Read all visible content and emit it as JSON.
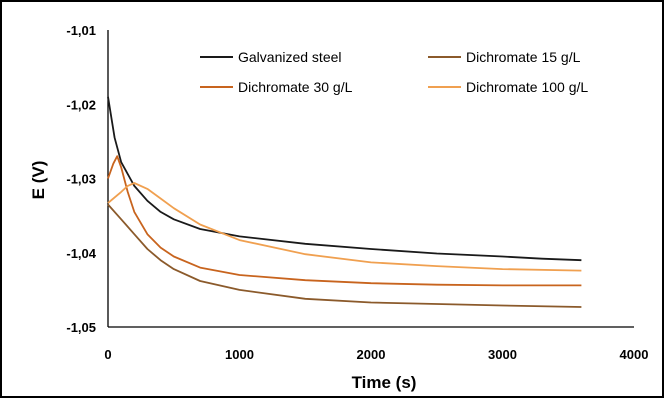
{
  "chart_data": {
    "type": "line",
    "title": "",
    "xlabel": "Time (s)",
    "ylabel": "E (V)",
    "xlim": [
      0,
      4000
    ],
    "ylim": [
      -1.05,
      -1.01
    ],
    "x_ticks": [
      0,
      1000,
      2000,
      3000,
      4000
    ],
    "x_tick_labels": [
      "0",
      "1000",
      "2000",
      "3000",
      "4000"
    ],
    "y_ticks": [
      -1.01,
      -1.02,
      -1.03,
      -1.04,
      -1.05
    ],
    "y_tick_labels": [
      "-1,01",
      "-1,02",
      "-1,03",
      "-1,04",
      "-1,05"
    ],
    "grid": false,
    "legend_position": "top-right",
    "series": [
      {
        "name": "Galvanized steel",
        "color": "#1a1a1a",
        "points": [
          [
            0,
            -1.019
          ],
          [
            50,
            -1.0245
          ],
          [
            100,
            -1.0278
          ],
          [
            200,
            -1.031
          ],
          [
            300,
            -1.033
          ],
          [
            400,
            -1.0345
          ],
          [
            500,
            -1.0355
          ],
          [
            700,
            -1.0368
          ],
          [
            1000,
            -1.0378
          ],
          [
            1500,
            -1.0388
          ],
          [
            2000,
            -1.0395
          ],
          [
            2500,
            -1.0401
          ],
          [
            3000,
            -1.0405
          ],
          [
            3300,
            -1.0408
          ],
          [
            3600,
            -1.041
          ]
        ]
      },
      {
        "name": "Dichromate 15 g/L",
        "color": "#8b5a2b",
        "points": [
          [
            0,
            -1.0335
          ],
          [
            100,
            -1.0355
          ],
          [
            200,
            -1.0375
          ],
          [
            300,
            -1.0395
          ],
          [
            400,
            -1.041
          ],
          [
            500,
            -1.0422
          ],
          [
            700,
            -1.0438
          ],
          [
            1000,
            -1.045
          ],
          [
            1500,
            -1.0462
          ],
          [
            2000,
            -1.0467
          ],
          [
            2500,
            -1.0469
          ],
          [
            3000,
            -1.0471
          ],
          [
            3600,
            -1.0473
          ]
        ]
      },
      {
        "name": "Dichromate 30 g/L",
        "color": "#c8641e",
        "points": [
          [
            0,
            -1.03
          ],
          [
            40,
            -1.028
          ],
          [
            70,
            -1.027
          ],
          [
            100,
            -1.0285
          ],
          [
            150,
            -1.0318
          ],
          [
            200,
            -1.0345
          ],
          [
            300,
            -1.0375
          ],
          [
            400,
            -1.0393
          ],
          [
            500,
            -1.0405
          ],
          [
            700,
            -1.042
          ],
          [
            1000,
            -1.043
          ],
          [
            1500,
            -1.0437
          ],
          [
            2000,
            -1.0441
          ],
          [
            2500,
            -1.0443
          ],
          [
            3000,
            -1.0444
          ],
          [
            3600,
            -1.0444
          ]
        ]
      },
      {
        "name": "Dichromate 100 g/L",
        "color": "#f0a050",
        "points": [
          [
            0,
            -1.0333
          ],
          [
            100,
            -1.0318
          ],
          [
            150,
            -1.031
          ],
          [
            200,
            -1.0306
          ],
          [
            300,
            -1.0314
          ],
          [
            400,
            -1.0327
          ],
          [
            500,
            -1.034
          ],
          [
            700,
            -1.0362
          ],
          [
            1000,
            -1.0383
          ],
          [
            1500,
            -1.0402
          ],
          [
            2000,
            -1.0413
          ],
          [
            2500,
            -1.0418
          ],
          [
            3000,
            -1.0422
          ],
          [
            3600,
            -1.0424
          ]
        ]
      }
    ]
  }
}
